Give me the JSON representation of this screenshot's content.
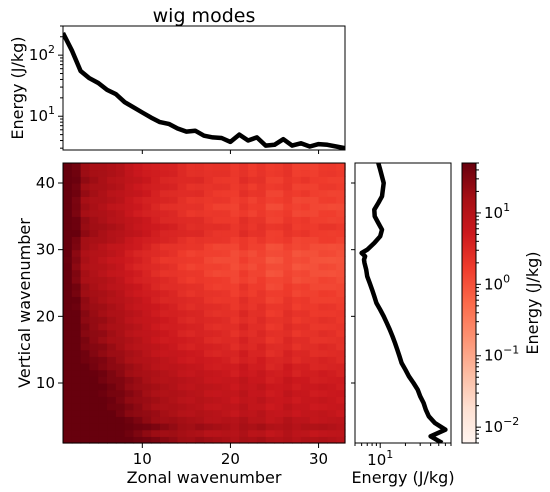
{
  "chart_data": [
    {
      "type": "line",
      "panel": "top",
      "title": "wig modes",
      "ylabel": "Energy (J/kg)",
      "xlabel": "",
      "y_scale": "log",
      "ylim": [
        2.8,
        300
      ],
      "xlim": [
        1,
        33
      ],
      "y_ticklabels": [
        {
          "value": 10,
          "base": "10",
          "exp": "1"
        },
        {
          "value": 100,
          "base": "10",
          "exp": "2"
        }
      ],
      "series": [
        {
          "x": [
            1,
            2,
            3,
            4,
            5,
            6,
            7,
            8,
            9,
            10,
            11,
            12,
            13,
            14,
            15,
            16,
            17,
            18,
            19,
            20,
            21,
            22,
            23,
            24,
            25,
            26,
            27,
            28,
            29,
            30,
            31,
            32,
            33
          ],
          "values": [
            230,
            120,
            55,
            42,
            35,
            27,
            23,
            17,
            14,
            11.5,
            9.5,
            8,
            7.5,
            6.3,
            5.6,
            5.8,
            4.8,
            4.5,
            4.4,
            3.8,
            5.0,
            4.0,
            4.5,
            3.3,
            3.4,
            4.2,
            3.3,
            3.6,
            3.2,
            3.5,
            3.4,
            3.2,
            3.0
          ]
        }
      ]
    },
    {
      "type": "heatmap",
      "panel": "main",
      "xlabel": "Zonal wavenumber",
      "ylabel": "Vertical wavenumber",
      "xlim": [
        1,
        33
      ],
      "ylim": [
        1,
        43
      ],
      "x_ticks": [
        "10",
        "20",
        "30"
      ],
      "y_ticks": [
        "10",
        "20",
        "30",
        "40"
      ],
      "x_range": [
        1,
        32
      ],
      "y_range": [
        1,
        43
      ],
      "z_scale": "log",
      "colormap": "Reds",
      "description": "Energy largest at low zonal / low vertical wavenumber, decaying toward high wavenumbers; band of enhanced energy near vertical wavenumber 28-29"
    },
    {
      "type": "line",
      "panel": "right",
      "xlabel": "Energy (J/kg)",
      "ylabel": "",
      "x_scale": "log",
      "xlim": [
        5,
        70
      ],
      "ylim": [
        1,
        43
      ],
      "x_ticklabels": [
        {
          "value": 10,
          "base": "10",
          "exp": "1"
        }
      ],
      "series": [
        {
          "energy": [
            55,
            40,
            60,
            45,
            38,
            35,
            33,
            30,
            28,
            25,
            22,
            20,
            18,
            17,
            16,
            15,
            14,
            13,
            12,
            11,
            10,
            9,
            8.5,
            8,
            7.5,
            7,
            6.8,
            6.5,
            6.4,
            6.6,
            6.0,
            7.0,
            8.5,
            10,
            10.5,
            9.5,
            8.6,
            8.5,
            9.5,
            10.5,
            11,
            10,
            9.5
          ],
          "vertical_wavenumber": [
            1,
            2,
            3,
            4,
            5,
            6,
            7,
            8,
            9,
            10,
            11,
            12,
            13,
            14,
            15,
            16,
            17,
            18,
            19,
            20,
            21,
            22,
            23,
            24,
            25,
            26,
            27,
            28,
            28.5,
            29,
            29.5,
            30,
            31,
            32,
            33,
            34,
            35,
            36,
            37,
            38,
            40,
            42,
            43
          ]
        }
      ]
    },
    {
      "type": "colorbar",
      "panel": "colorbar",
      "label": "Energy (J/kg)",
      "scale": "log",
      "range": [
        0.006,
        50
      ],
      "colormap": "Reds",
      "ticklabels": [
        {
          "value": 0.01,
          "base": "10",
          "exp": "−2"
        },
        {
          "value": 0.1,
          "base": "10",
          "exp": "−1"
        },
        {
          "value": 1,
          "base": "10",
          "exp": "0"
        },
        {
          "value": 10,
          "base": "10",
          "exp": "1"
        }
      ]
    }
  ]
}
